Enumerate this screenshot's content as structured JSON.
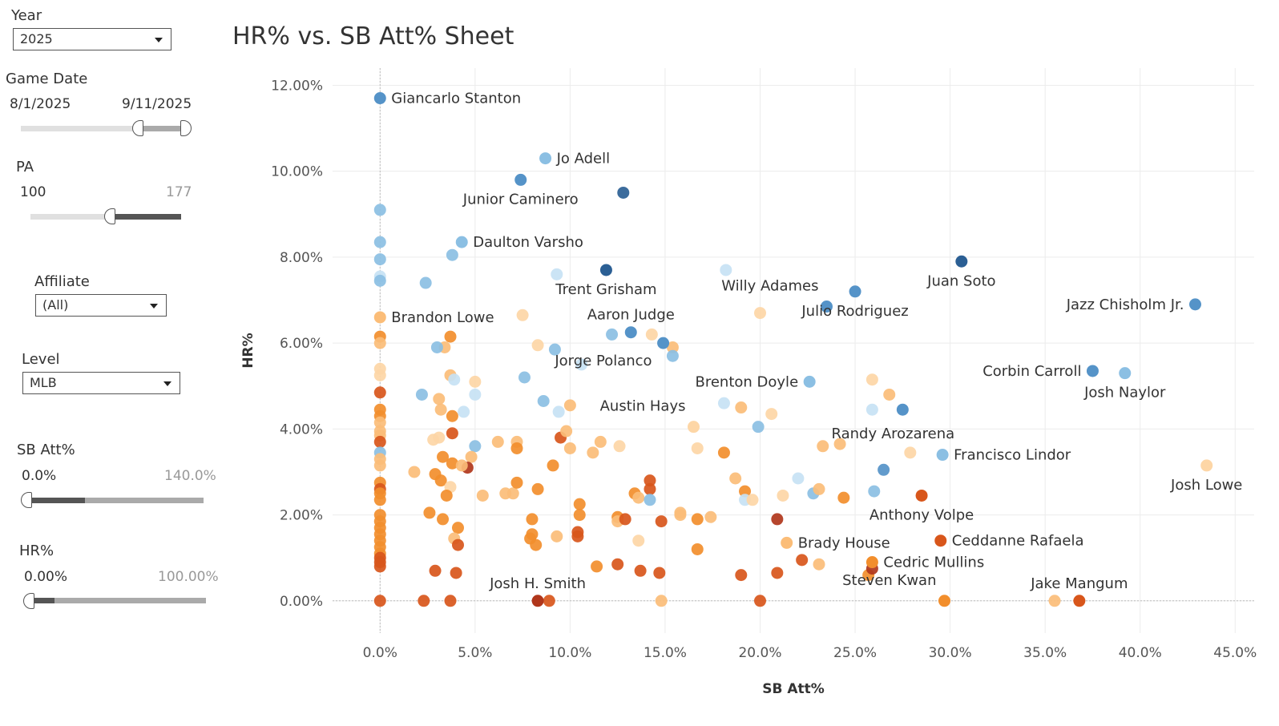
{
  "filters": {
    "year": {
      "label": "Year",
      "value": "2025"
    },
    "game_date": {
      "label": "Game Date",
      "min": "8/1/2025",
      "max": "9/11/2025"
    },
    "pa": {
      "label": "PA",
      "min": "100",
      "max": "177"
    },
    "affiliate": {
      "label": "Affiliate",
      "value": "(All)"
    },
    "level": {
      "label": "Level",
      "value": "MLB"
    },
    "sb_att": {
      "label": "SB Att%",
      "min": "0.0%",
      "max": "140.0%"
    },
    "hr_pct": {
      "label": "HR%",
      "min": "0.00%",
      "max": "100.00%"
    }
  },
  "colors": {
    "blue_dark": "#2b5f94",
    "blue_mid": "#5593c8",
    "blue_light": "#8bbfe3",
    "blue_pale": "#c7e2f4",
    "orange_pale": "#fdd6a6",
    "orange_light": "#fbbd78",
    "orange_mid": "#f28e2c",
    "orange_dark": "#d8561b",
    "red_dark": "#b0361b"
  },
  "chart_data": {
    "type": "scatter",
    "title": "HR% vs. SB Att% Sheet",
    "xlabel": "SB Att%",
    "ylabel": "HR%",
    "xlim": [
      -2.5,
      46
    ],
    "ylim": [
      -0.75,
      12.4
    ],
    "xticks": [
      0,
      5,
      10,
      15,
      20,
      25,
      30,
      35,
      40,
      45
    ],
    "xtick_labels": [
      "0.0%",
      "5.0%",
      "10.0%",
      "15.0%",
      "20.0%",
      "25.0%",
      "30.0%",
      "35.0%",
      "40.0%",
      "45.0%"
    ],
    "yticks": [
      0,
      2,
      4,
      6,
      8,
      10,
      12
    ],
    "ytick_labels": [
      "0.00%",
      "2.00%",
      "4.00%",
      "6.00%",
      "8.00%",
      "10.00%",
      "12.00%"
    ],
    "labeled_points": [
      {
        "name": "Giancarlo Stanton",
        "x": 0.0,
        "y": 11.7,
        "color": "blue_mid",
        "pos": "right"
      },
      {
        "name": "Jo Adell",
        "x": 8.7,
        "y": 10.3,
        "color": "blue_light",
        "pos": "right"
      },
      {
        "name": "Junior Caminero",
        "x": 7.4,
        "y": 9.8,
        "color": "blue_mid",
        "pos": "below"
      },
      {
        "name": "Daulton Varsho",
        "x": 4.3,
        "y": 8.35,
        "color": "blue_light",
        "pos": "right"
      },
      {
        "name": "Trent Grisham",
        "x": 11.9,
        "y": 7.7,
        "color": "blue_dark",
        "pos": "below"
      },
      {
        "name": "Juan Soto",
        "x": 30.6,
        "y": 7.9,
        "color": "blue_dark",
        "pos": "below"
      },
      {
        "name": "Willy Adames",
        "x": 23.5,
        "y": 6.85,
        "color": "blue_mid",
        "pos": "upleft"
      },
      {
        "name": "Julio Rodriguez",
        "x": 25.0,
        "y": 7.2,
        "color": "blue_mid",
        "pos": "below"
      },
      {
        "name": "Jazz Chisholm Jr.",
        "x": 42.9,
        "y": 6.9,
        "color": "blue_mid",
        "pos": "left"
      },
      {
        "name": "Brandon Lowe",
        "x": 0.0,
        "y": 6.6,
        "color": "orange_light",
        "pos": "right"
      },
      {
        "name": "Aaron Judge",
        "x": 13.2,
        "y": 6.25,
        "color": "blue_mid",
        "pos": "up"
      },
      {
        "name": "Corbin Carroll",
        "x": 37.5,
        "y": 5.35,
        "color": "blue_mid",
        "pos": "left"
      },
      {
        "name": "Josh Naylor",
        "x": 39.2,
        "y": 5.3,
        "color": "blue_light",
        "pos": "below"
      },
      {
        "name": "Brenton Doyle",
        "x": 22.6,
        "y": 5.1,
        "color": "blue_light",
        "pos": "left"
      },
      {
        "name": "Jorge Polanco",
        "x": 14.9,
        "y": 6.0,
        "color": "blue_mid",
        "pos": "leftdown"
      },
      {
        "name": "Austin Hays",
        "x": 16.5,
        "y": 4.05,
        "color": "orange_pale",
        "pos": "upleft"
      },
      {
        "name": "Randy Arozarena",
        "x": 27.5,
        "y": 4.45,
        "color": "blue_mid",
        "pos": "belowright"
      },
      {
        "name": "Francisco Lindor",
        "x": 29.6,
        "y": 3.4,
        "color": "blue_light",
        "pos": "right"
      },
      {
        "name": "Josh Lowe",
        "x": 43.5,
        "y": 3.15,
        "color": "orange_pale",
        "pos": "below"
      },
      {
        "name": "Anthony Volpe",
        "x": 28.5,
        "y": 2.45,
        "color": "orange_dark",
        "pos": "below"
      },
      {
        "name": "Brady House",
        "x": 21.4,
        "y": 1.35,
        "color": "orange_light",
        "pos": "right"
      },
      {
        "name": "Ceddanne Rafaela",
        "x": 29.5,
        "y": 1.4,
        "color": "orange_dark",
        "pos": "right"
      },
      {
        "name": "Cedric Mullins",
        "x": 25.9,
        "y": 0.9,
        "color": "orange_mid",
        "pos": "right"
      },
      {
        "name": "Josh H. Smith",
        "x": 8.3,
        "y": 0.0,
        "color": "red_dark",
        "pos": "up"
      },
      {
        "name": "Steven Kwan",
        "x": 29.7,
        "y": 0.0,
        "color": "orange_mid",
        "pos": "upleft"
      },
      {
        "name": "Jake Mangum",
        "x": 36.8,
        "y": 0.0,
        "color": "orange_dark",
        "pos": "up"
      }
    ],
    "points": [
      [
        0,
        9.1,
        "blue_light"
      ],
      [
        0,
        8.35,
        "blue_light"
      ],
      [
        0,
        7.95,
        "blue_light"
      ],
      [
        0,
        7.55,
        "blue_pale"
      ],
      [
        0,
        7.45,
        "blue_light"
      ],
      [
        2.4,
        7.4,
        "blue_light"
      ],
      [
        3.8,
        8.05,
        "blue_light"
      ],
      [
        9.3,
        7.6,
        "blue_pale"
      ],
      [
        12.8,
        9.5,
        "blue_dark"
      ],
      [
        18.2,
        7.7,
        "blue_pale"
      ],
      [
        20.0,
        6.7,
        "orange_pale"
      ],
      [
        7.5,
        6.65,
        "orange_pale"
      ],
      [
        0,
        6.15,
        "orange_mid"
      ],
      [
        0,
        6.0,
        "orange_light"
      ],
      [
        3.7,
        6.15,
        "orange_mid"
      ],
      [
        3.4,
        5.9,
        "orange_light"
      ],
      [
        3.0,
        5.9,
        "blue_light"
      ],
      [
        8.3,
        5.95,
        "orange_pale"
      ],
      [
        9.2,
        5.85,
        "blue_light"
      ],
      [
        12.2,
        6.2,
        "blue_light"
      ],
      [
        14.3,
        6.2,
        "orange_pale"
      ],
      [
        15.4,
        5.9,
        "orange_light"
      ],
      [
        15.4,
        5.7,
        "blue_light"
      ],
      [
        0,
        5.4,
        "orange_pale"
      ],
      [
        0,
        5.25,
        "orange_pale"
      ],
      [
        3.7,
        5.25,
        "orange_light"
      ],
      [
        3.9,
        5.15,
        "blue_pale"
      ],
      [
        5.0,
        5.1,
        "orange_pale"
      ],
      [
        7.6,
        5.2,
        "blue_light"
      ],
      [
        10.6,
        5.5,
        "blue_pale"
      ],
      [
        25.9,
        5.15,
        "orange_pale"
      ],
      [
        26.8,
        4.8,
        "orange_light"
      ],
      [
        0,
        4.85,
        "orange_dark"
      ],
      [
        2.2,
        4.8,
        "blue_light"
      ],
      [
        3.1,
        4.7,
        "orange_light"
      ],
      [
        5.0,
        4.8,
        "blue_pale"
      ],
      [
        8.6,
        4.65,
        "blue_light"
      ],
      [
        9.4,
        4.4,
        "blue_pale"
      ],
      [
        10.0,
        4.55,
        "orange_light"
      ],
      [
        18.1,
        4.6,
        "blue_pale"
      ],
      [
        19.0,
        4.5,
        "orange_light"
      ],
      [
        20.6,
        4.35,
        "orange_pale"
      ],
      [
        25.9,
        4.45,
        "blue_pale"
      ],
      [
        0,
        4.45,
        "orange_mid"
      ],
      [
        0,
        4.3,
        "orange_mid"
      ],
      [
        0,
        4.15,
        "orange_light"
      ],
      [
        3.2,
        4.45,
        "orange_light"
      ],
      [
        3.8,
        4.3,
        "orange_mid"
      ],
      [
        4.4,
        4.4,
        "blue_pale"
      ],
      [
        0,
        3.95,
        "orange_light"
      ],
      [
        0,
        3.85,
        "orange_light"
      ],
      [
        0,
        3.7,
        "orange_dark"
      ],
      [
        2.8,
        3.75,
        "orange_pale"
      ],
      [
        3.1,
        3.8,
        "orange_pale"
      ],
      [
        3.8,
        3.9,
        "orange_dark"
      ],
      [
        5.0,
        3.6,
        "blue_light"
      ],
      [
        6.2,
        3.7,
        "orange_light"
      ],
      [
        7.2,
        3.7,
        "orange_light"
      ],
      [
        7.2,
        3.55,
        "orange_mid"
      ],
      [
        9.5,
        3.8,
        "orange_dark"
      ],
      [
        9.8,
        3.95,
        "orange_light"
      ],
      [
        10.0,
        3.55,
        "orange_light"
      ],
      [
        11.2,
        3.45,
        "orange_light"
      ],
      [
        11.6,
        3.7,
        "orange_light"
      ],
      [
        12.6,
        3.6,
        "orange_pale"
      ],
      [
        16.7,
        3.55,
        "orange_pale"
      ],
      [
        18.1,
        3.45,
        "orange_mid"
      ],
      [
        19.9,
        4.05,
        "blue_light"
      ],
      [
        23.3,
        3.6,
        "orange_light"
      ],
      [
        24.2,
        3.65,
        "orange_light"
      ],
      [
        26.5,
        3.05,
        "blue_mid"
      ],
      [
        27.9,
        3.45,
        "orange_pale"
      ],
      [
        0,
        3.45,
        "blue_light"
      ],
      [
        0,
        3.3,
        "orange_light"
      ],
      [
        0,
        3.15,
        "orange_light"
      ],
      [
        3.3,
        3.35,
        "orange_mid"
      ],
      [
        3.8,
        3.2,
        "orange_mid"
      ],
      [
        4.8,
        3.35,
        "orange_light"
      ],
      [
        4.6,
        3.1,
        "red_dark"
      ],
      [
        4.3,
        3.15,
        "orange_light"
      ],
      [
        1.8,
        3.0,
        "orange_light"
      ],
      [
        2.9,
        2.95,
        "orange_mid"
      ],
      [
        3.2,
        2.8,
        "orange_mid"
      ],
      [
        3.7,
        2.65,
        "orange_pale"
      ],
      [
        3.5,
        2.45,
        "orange_mid"
      ],
      [
        0,
        2.75,
        "orange_mid"
      ],
      [
        0,
        2.6,
        "orange_dark"
      ],
      [
        0,
        2.5,
        "orange_mid"
      ],
      [
        0,
        2.35,
        "orange_mid"
      ],
      [
        5.4,
        2.45,
        "orange_light"
      ],
      [
        6.6,
        2.5,
        "orange_light"
      ],
      [
        7.0,
        2.5,
        "orange_light"
      ],
      [
        7.2,
        2.75,
        "orange_mid"
      ],
      [
        8.3,
        2.6,
        "orange_mid"
      ],
      [
        9.1,
        3.15,
        "orange_mid"
      ],
      [
        14.2,
        2.8,
        "orange_dark"
      ],
      [
        14.2,
        2.6,
        "orange_dark"
      ],
      [
        13.4,
        2.5,
        "orange_mid"
      ],
      [
        13.6,
        2.4,
        "orange_light"
      ],
      [
        14.2,
        2.35,
        "blue_light"
      ],
      [
        19.2,
        2.55,
        "orange_mid"
      ],
      [
        18.7,
        2.85,
        "orange_light"
      ],
      [
        19.2,
        2.35,
        "blue_pale"
      ],
      [
        19.6,
        2.35,
        "orange_pale"
      ],
      [
        21.2,
        2.45,
        "orange_pale"
      ],
      [
        22.0,
        2.85,
        "blue_pale"
      ],
      [
        22.8,
        2.5,
        "blue_light"
      ],
      [
        23.1,
        2.6,
        "orange_light"
      ],
      [
        24.4,
        2.4,
        "orange_mid"
      ],
      [
        26.0,
        2.55,
        "blue_light"
      ],
      [
        0,
        2.0,
        "orange_mid"
      ],
      [
        0,
        1.85,
        "orange_mid"
      ],
      [
        0,
        1.7,
        "orange_mid"
      ],
      [
        0,
        1.55,
        "orange_mid"
      ],
      [
        0,
        1.4,
        "orange_mid"
      ],
      [
        0,
        1.25,
        "orange_mid"
      ],
      [
        0,
        1.1,
        "orange_mid"
      ],
      [
        0,
        1.0,
        "orange_dark"
      ],
      [
        0,
        0.9,
        "orange_dark"
      ],
      [
        0,
        0.8,
        "orange_dark"
      ],
      [
        2.6,
        2.05,
        "orange_mid"
      ],
      [
        3.3,
        1.9,
        "orange_mid"
      ],
      [
        4.1,
        1.7,
        "orange_mid"
      ],
      [
        3.9,
        1.45,
        "orange_light"
      ],
      [
        4.1,
        1.3,
        "orange_dark"
      ],
      [
        8.0,
        1.9,
        "orange_mid"
      ],
      [
        8.0,
        1.55,
        "orange_mid"
      ],
      [
        7.9,
        1.45,
        "orange_mid"
      ],
      [
        8.2,
        1.3,
        "orange_mid"
      ],
      [
        9.3,
        1.5,
        "orange_light"
      ],
      [
        10.4,
        1.6,
        "orange_dark"
      ],
      [
        10.4,
        1.5,
        "orange_dark"
      ],
      [
        10.5,
        2.25,
        "orange_mid"
      ],
      [
        10.5,
        2.0,
        "orange_mid"
      ],
      [
        12.5,
        1.95,
        "orange_mid"
      ],
      [
        12.5,
        1.85,
        "orange_light"
      ],
      [
        12.9,
        1.9,
        "orange_dark"
      ],
      [
        13.6,
        1.4,
        "orange_pale"
      ],
      [
        14.8,
        1.85,
        "orange_dark"
      ],
      [
        15.8,
        2.05,
        "orange_light"
      ],
      [
        15.8,
        2.0,
        "orange_light"
      ],
      [
        16.7,
        1.9,
        "orange_mid"
      ],
      [
        17.4,
        1.95,
        "orange_light"
      ],
      [
        16.7,
        1.2,
        "orange_mid"
      ],
      [
        20.9,
        1.9,
        "red_dark"
      ],
      [
        22.2,
        0.95,
        "orange_dark"
      ],
      [
        23.1,
        0.85,
        "orange_light"
      ],
      [
        25.7,
        0.6,
        "orange_mid"
      ],
      [
        2.9,
        0.7,
        "orange_dark"
      ],
      [
        4.0,
        0.65,
        "orange_dark"
      ],
      [
        11.4,
        0.8,
        "orange_mid"
      ],
      [
        12.5,
        0.85,
        "orange_dark"
      ],
      [
        13.7,
        0.7,
        "orange_dark"
      ],
      [
        14.7,
        0.65,
        "orange_dark"
      ],
      [
        19.0,
        0.6,
        "orange_dark"
      ],
      [
        20.9,
        0.65,
        "orange_dark"
      ],
      [
        25.9,
        0.75,
        "red_dark"
      ],
      [
        0,
        0,
        "orange_dark"
      ],
      [
        2.3,
        0,
        "orange_dark"
      ],
      [
        3.7,
        0,
        "orange_dark"
      ],
      [
        8.9,
        0,
        "orange_dark"
      ],
      [
        14.8,
        0,
        "orange_light"
      ],
      [
        20.0,
        0,
        "orange_dark"
      ],
      [
        35.5,
        0,
        "orange_light"
      ]
    ]
  }
}
